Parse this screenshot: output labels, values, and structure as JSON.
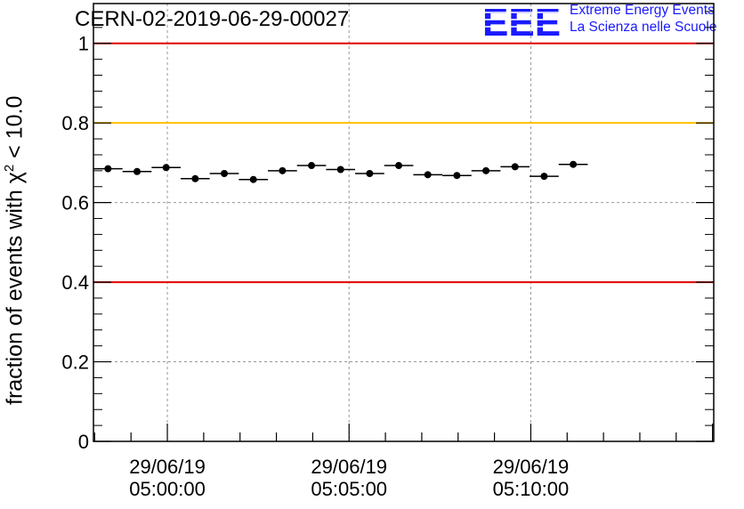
{
  "header": {
    "title": "CERN-02-2019-06-29-00027",
    "logo_mark": "EEE",
    "logo_line1": "Extreme Energy Events",
    "logo_line2": "La Scienza nelle Scuole"
  },
  "colors": {
    "upper_limit": "#e00000",
    "lower_limit": "#e00000",
    "warning": "#ffc000",
    "points": "#000000",
    "logo": "#1a1aff"
  },
  "chart_data": {
    "type": "scatter",
    "ylabel_prefix": "fraction of events with χ",
    "ylabel_sup": "2",
    "ylabel_suffix": " < 10.0",
    "ylim": [
      0,
      1.1
    ],
    "y_ticks": [
      0,
      0.2,
      0.4,
      0.6,
      0.8,
      1
    ],
    "y_tick_labels": [
      "0",
      "0.2",
      "0.4",
      "0.6",
      "0.8",
      "1"
    ],
    "x_range": [
      "04:57:58",
      "05:15:02"
    ],
    "x_ticks": [
      {
        "time": "05:00:00",
        "label_date": "29/06/19",
        "label_time": "05:00:00"
      },
      {
        "time": "05:05:00",
        "label_date": "29/06/19",
        "label_time": "05:05:00"
      },
      {
        "time": "05:10:00",
        "label_date": "29/06/19",
        "label_time": "05:10:00"
      }
    ],
    "grid": true,
    "reference_lines": [
      {
        "y": 1.0,
        "color": "#e00000"
      },
      {
        "y": 0.8,
        "color": "#ffc000"
      },
      {
        "y": 0.4,
        "color": "#e00000"
      }
    ],
    "bin_width_s": 48,
    "points": [
      {
        "x": "04:58:22",
        "y": 0.685
      },
      {
        "x": "04:59:10",
        "y": 0.678
      },
      {
        "x": "04:59:58",
        "y": 0.688
      },
      {
        "x": "05:00:46",
        "y": 0.66
      },
      {
        "x": "05:01:34",
        "y": 0.673
      },
      {
        "x": "05:02:22",
        "y": 0.658
      },
      {
        "x": "05:03:10",
        "y": 0.68
      },
      {
        "x": "05:03:58",
        "y": 0.693
      },
      {
        "x": "05:04:46",
        "y": 0.683
      },
      {
        "x": "05:05:34",
        "y": 0.673
      },
      {
        "x": "05:06:22",
        "y": 0.693
      },
      {
        "x": "05:07:10",
        "y": 0.67
      },
      {
        "x": "05:07:58",
        "y": 0.668
      },
      {
        "x": "05:08:46",
        "y": 0.68
      },
      {
        "x": "05:09:34",
        "y": 0.69
      },
      {
        "x": "05:10:22",
        "y": 0.666
      },
      {
        "x": "05:11:10",
        "y": 0.696
      }
    ]
  }
}
